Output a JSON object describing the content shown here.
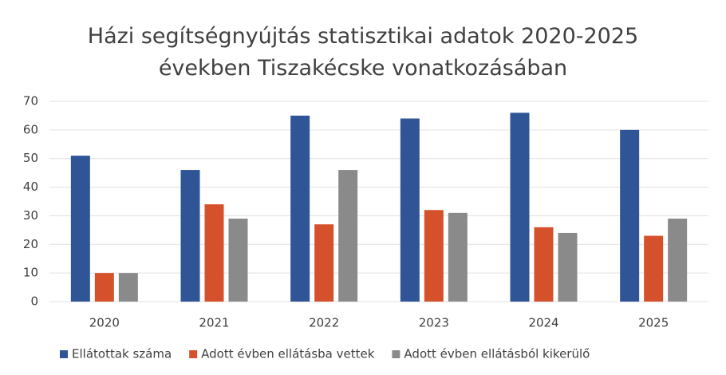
{
  "chart_data": {
    "type": "bar",
    "title": "Házi segítségnyújtás statisztikai adatok 2020-2025 években Tiszakécske vonatkozásában",
    "categories": [
      "2020",
      "2021",
      "2022",
      "2023",
      "2024",
      "2025"
    ],
    "series": [
      {
        "name": "Ellátottak száma",
        "color": "#2f5597",
        "values": [
          51,
          46,
          65,
          64,
          66,
          60
        ]
      },
      {
        "name": "Adott évben ellátásba vettek",
        "color": "#d5512c",
        "values": [
          10,
          34,
          27,
          32,
          26,
          23
        ]
      },
      {
        "name": "Adott évben ellátásból kikerülő",
        "color": "#8a8a8a",
        "values": [
          10,
          29,
          46,
          31,
          24,
          29
        ]
      }
    ],
    "ylim": [
      0,
      70
    ],
    "yticks": [
      0,
      10,
      20,
      30,
      40,
      50,
      60,
      70
    ],
    "grid": true,
    "legend": "bottom"
  }
}
